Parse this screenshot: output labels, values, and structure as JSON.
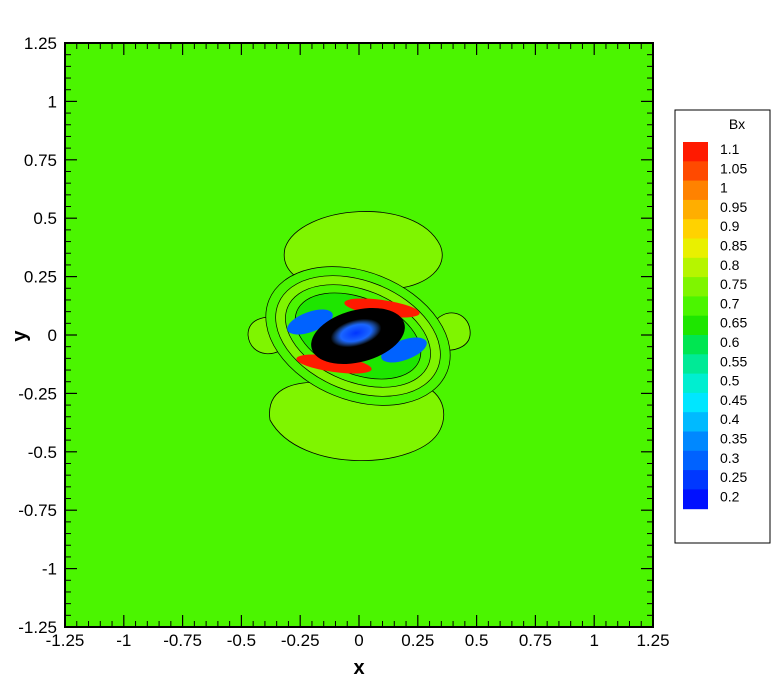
{
  "chart_data": {
    "type": "contour",
    "title": "",
    "xlabel": "x",
    "ylabel": "y",
    "xlim": [
      -1.25,
      1.25
    ],
    "ylim": [
      -1.25,
      1.25
    ],
    "x_ticks": [
      "-1.25",
      "-1",
      "-0.75",
      "-0.5",
      "-0.25",
      "0",
      "0.25",
      "0.5",
      "0.75",
      "1",
      "1.25"
    ],
    "y_ticks": [
      "1.25",
      "1",
      "0.75",
      "0.5",
      "0.25",
      "0",
      "-0.25",
      "-0.5",
      "-0.75",
      "-1",
      "-1.25"
    ],
    "background_value": 0.72,
    "colorbar": {
      "title": "Bx",
      "levels": [
        "1.1",
        "1.05",
        "1",
        "0.95",
        "0.9",
        "0.85",
        "0.8",
        "0.75",
        "0.7",
        "0.65",
        "0.6",
        "0.55",
        "0.5",
        "0.45",
        "0.4",
        "0.35",
        "0.3",
        "0.25",
        "0.2"
      ],
      "colors": [
        "#ff1a00",
        "#ff4a00",
        "#ff8200",
        "#ffae00",
        "#ffd200",
        "#e9f000",
        "#b6f500",
        "#7ff500",
        "#4bf500",
        "#1ee600",
        "#00e651",
        "#00ea96",
        "#00eed0",
        "#00e6ff",
        "#00baff",
        "#0088ff",
        "#0062ff",
        "#0038ff",
        "#0010ff"
      ],
      "placement": "right"
    },
    "grid": false
  }
}
